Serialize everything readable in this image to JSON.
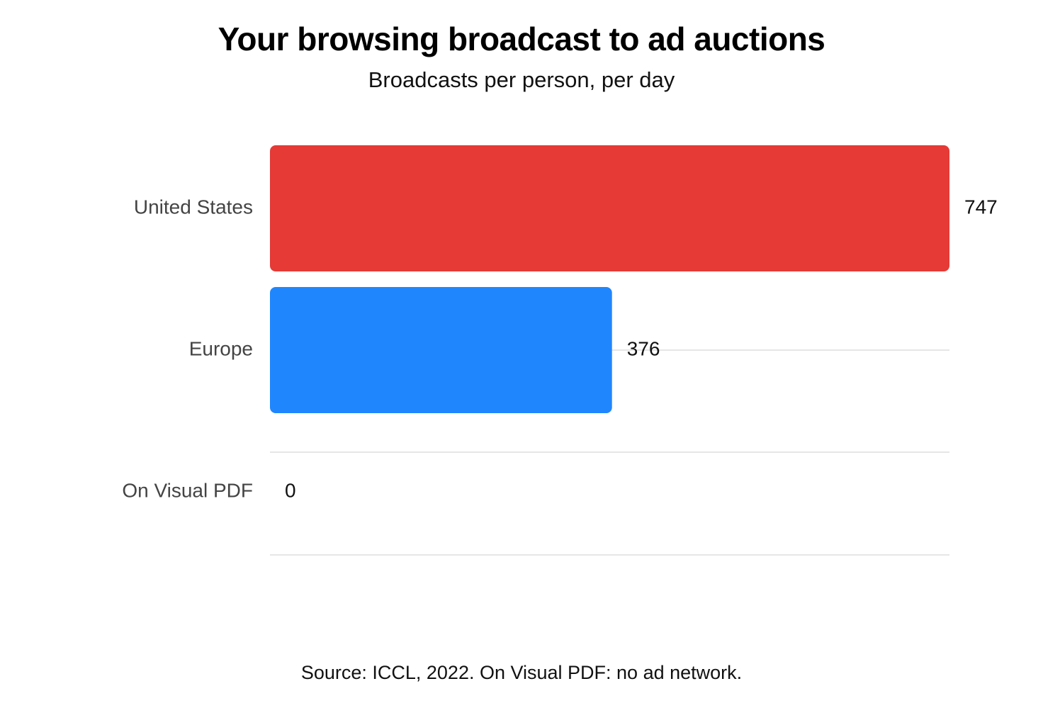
{
  "chart_data": {
    "type": "bar",
    "orientation": "horizontal",
    "title": "Your browsing broadcast to ad auctions",
    "subtitle": "Broadcasts per person, per day",
    "categories": [
      "United States",
      "Europe",
      "On Visual PDF"
    ],
    "values": [
      747,
      376,
      0
    ],
    "value_labels": [
      "747",
      "376",
      "0"
    ],
    "bar_colors": [
      "#e53a36",
      "#2086fd",
      "#cccccc"
    ],
    "xlim": [
      0,
      747
    ],
    "grid": true,
    "legend": "none",
    "source": "Source: ICCL, 2022. On Visual PDF: no ad network."
  }
}
